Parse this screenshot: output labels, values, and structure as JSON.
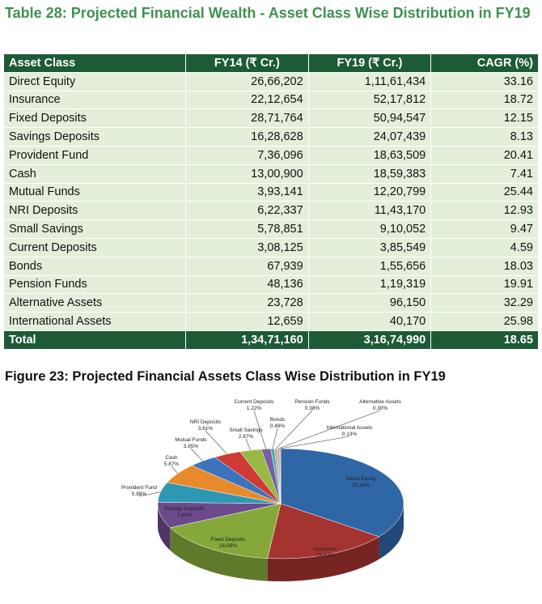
{
  "table_title": "Table 28: Projected Financial Wealth - Asset Class Wise Distribution in FY19",
  "table": {
    "header": [
      "Asset Class",
      "FY14 (₹ Cr.)",
      "FY19 (₹ Cr.)",
      "CAGR (%)"
    ],
    "rows": [
      [
        "Direct Equity",
        "26,66,202",
        "1,11,61,434",
        "33.16"
      ],
      [
        "Insurance",
        "22,12,654",
        "52,17,812",
        "18.72"
      ],
      [
        "Fixed Deposits",
        "28,71,764",
        "50,94,547",
        "12.15"
      ],
      [
        "Savings Deposits",
        "16,28,628",
        "24,07,439",
        "8.13"
      ],
      [
        "Provident Fund",
        "7,36,096",
        "18,63,509",
        "20.41"
      ],
      [
        "Cash",
        "13,00,900",
        "18,59,383",
        "7.41"
      ],
      [
        "Mutual Funds",
        "3,93,141",
        "12,20,799",
        "25.44"
      ],
      [
        "NRI Deposits",
        "6,22,337",
        "11,43,170",
        "12.93"
      ],
      [
        "Small Savings",
        "5,78,851",
        "9,10,052",
        "9.47"
      ],
      [
        "Current Deposits",
        "3,08,125",
        "3,85,549",
        "4.59"
      ],
      [
        "Bonds",
        "67,939",
        "1,55,656",
        "18.03"
      ],
      [
        "Pension Funds",
        "48,136",
        "1,19,319",
        "19.91"
      ],
      [
        "Alternative Assets",
        "23,728",
        "96,150",
        "32.29"
      ],
      [
        "International Assets",
        "12,659",
        "40,170",
        "25.98"
      ]
    ],
    "total": [
      "Total",
      "1,34,71,160",
      "3,16,74,990",
      "18.65"
    ]
  },
  "chart_data": {
    "type": "pie",
    "title": "Figure 23: Projected Financial Assets Class Wise Distribution in FY19",
    "categories": [
      "Direct Equity",
      "Insurance",
      "Fixed Deposits",
      "Savings Deposits",
      "Provident Fund",
      "Cash",
      "Mutual Funds",
      "NRI Deposits",
      "Small Savings",
      "Current Deposits",
      "Bonds",
      "Pension Funds",
      "Alternative Assets",
      "International Assets"
    ],
    "values": [
      35.24,
      16.47,
      16.08,
      7.6,
      5.88,
      5.87,
      3.85,
      3.61,
      2.87,
      1.22,
      0.49,
      0.38,
      0.3,
      0.13
    ],
    "value_labels": [
      "35.24%",
      "16.47%",
      "16.08%",
      "7.60%",
      "5.88%",
      "5.87%",
      "3.85%",
      "3.61%",
      "2.87%",
      "1.22%",
      "0.49%",
      "0.38%",
      "0.30%",
      "0.13%"
    ],
    "colors": [
      "#2f66a6",
      "#a53330",
      "#86a83a",
      "#6c4a8c",
      "#2e98b3",
      "#e8892c",
      "#3b74bd",
      "#cf3a35",
      "#98b845",
      "#7a5ea0",
      "#3fb0c9",
      "#f0a050",
      "#8fb0dc",
      "#e08a8a"
    ]
  }
}
